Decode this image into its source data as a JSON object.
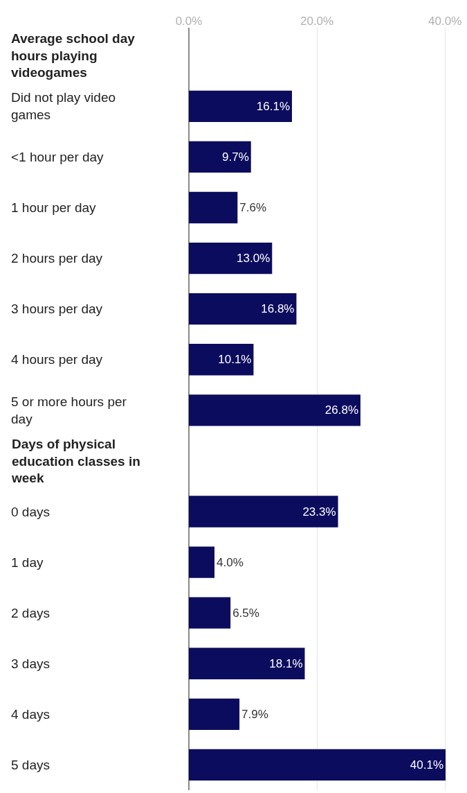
{
  "chart_data": {
    "type": "bar",
    "orientation": "horizontal",
    "categories": [
      "Average school day hours playing videogames",
      "Did not play video games",
      "<1 hour per day",
      "1 hour per day",
      "2 hours per day",
      "3 hours per day",
      "4 hours per day",
      "5 or more hours per day",
      "Days of physical education classes in week",
      "0 days",
      "1 day",
      "2 days",
      "3 days",
      "4 days",
      "5 days"
    ],
    "values": [
      null,
      16.1,
      9.7,
      7.6,
      13.0,
      16.8,
      10.1,
      26.8,
      null,
      23.3,
      4.0,
      6.5,
      18.1,
      7.9,
      40.1
    ],
    "value_labels": [
      null,
      "16.1%",
      "9.7%",
      "7.6%",
      "13.0%",
      "16.8%",
      "10.1%",
      "26.8%",
      null,
      "23.3%",
      "4.0%",
      "6.5%",
      "18.1%",
      "7.9%",
      "40.1%"
    ],
    "color": "#0c0c5e",
    "xlim": [
      0,
      40.2
    ],
    "xticks": [
      {
        "value": 0,
        "label": "0.0%"
      },
      {
        "value": 20,
        "label": "20.0%"
      },
      {
        "value": 40,
        "label": "40.0%"
      }
    ],
    "grid": "x"
  }
}
